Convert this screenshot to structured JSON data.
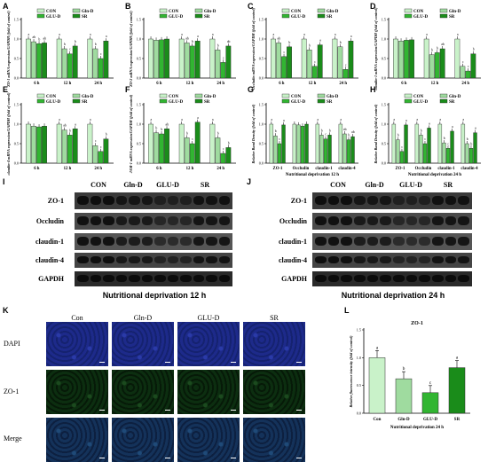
{
  "panel_labels": [
    "A",
    "B",
    "C",
    "D",
    "E",
    "F",
    "G",
    "H",
    "I",
    "J",
    "K",
    "L"
  ],
  "colors": {
    "CON": "#c9f2c9",
    "Gln-D": "#9fdb9f",
    "GLU-D": "#31b531",
    "SR": "#1a8c1a",
    "outline": "#2a2a2a",
    "dapi": "#1c2c8c",
    "zo1": "#0f3a12"
  },
  "legend": [
    "CON",
    "Gln-D",
    "GLU-D",
    "SR"
  ],
  "chart_data": [
    {
      "panel": "A",
      "type": "bar",
      "ylabel": "ZO-1 mRNA expression/GAPDH (fold of control)",
      "categories": [
        "6 h",
        "12 h",
        "24 h"
      ],
      "ylim": [
        0,
        1.5
      ],
      "series": [
        {
          "name": "CON",
          "values": [
            1.0,
            1.0,
            1.0
          ]
        },
        {
          "name": "Gln-D",
          "values": [
            0.93,
            0.75,
            0.75
          ]
        },
        {
          "name": "GLU-D",
          "values": [
            0.88,
            0.62,
            0.5
          ]
        },
        {
          "name": "SR",
          "values": [
            0.9,
            0.82,
            0.95
          ]
        }
      ],
      "annotations": [
        [
          "a",
          "ab",
          "b",
          "ab"
        ],
        [
          "a",
          "b",
          "c",
          "b"
        ],
        [
          "a",
          "b",
          "c",
          "a"
        ]
      ]
    },
    {
      "panel": "B",
      "type": "bar",
      "ylabel": "ZO-2 mRNA expression/GAPDH (fold of control)",
      "categories": [
        "6 h",
        "12 h",
        "24 h"
      ],
      "ylim": [
        0,
        1.5
      ],
      "series": [
        {
          "name": "CON",
          "values": [
            1.0,
            1.0,
            1.0
          ]
        },
        {
          "name": "Gln-D",
          "values": [
            0.97,
            0.9,
            0.72
          ]
        },
        {
          "name": "GLU-D",
          "values": [
            0.98,
            0.82,
            0.4
          ]
        },
        {
          "name": "SR",
          "values": [
            1.0,
            0.95,
            0.82
          ]
        }
      ],
      "annotations": [
        [
          "",
          "",
          "",
          ""
        ],
        [
          "a",
          "ab",
          "b",
          "a"
        ],
        [
          "a",
          "b",
          "c",
          "ab"
        ]
      ]
    },
    {
      "panel": "C",
      "type": "bar",
      "ylabel": "Occludin mRNA expression/GAPDH (fold of control)",
      "categories": [
        "6 h",
        "12 h",
        "24 h"
      ],
      "ylim": [
        0,
        1.5
      ],
      "series": [
        {
          "name": "CON",
          "values": [
            1.0,
            1.0,
            1.0
          ]
        },
        {
          "name": "Gln-D",
          "values": [
            0.9,
            0.72,
            0.8
          ]
        },
        {
          "name": "GLU-D",
          "values": [
            0.55,
            0.3,
            0.22
          ]
        },
        {
          "name": "SR",
          "values": [
            0.8,
            0.85,
            0.95
          ]
        }
      ],
      "annotations": [
        [
          "a",
          "ab",
          "c",
          "b"
        ],
        [
          "a",
          "b",
          "c",
          "a"
        ],
        [
          "a",
          "b",
          "c",
          "a"
        ]
      ]
    },
    {
      "panel": "D",
      "type": "bar",
      "ylabel": "claudin-1 mRNA expression/GAPDH (fold of control)",
      "categories": [
        "6 h",
        "12 h",
        "24 h"
      ],
      "ylim": [
        0,
        1.5
      ],
      "series": [
        {
          "name": "CON",
          "values": [
            1.0,
            1.0,
            1.0
          ]
        },
        {
          "name": "Gln-D",
          "values": [
            0.95,
            0.6,
            0.3
          ]
        },
        {
          "name": "GLU-D",
          "values": [
            0.97,
            0.65,
            0.18
          ]
        },
        {
          "name": "SR",
          "values": [
            0.98,
            0.75,
            0.62
          ]
        }
      ],
      "annotations": [
        [
          "",
          "",
          "",
          ""
        ],
        [
          "a",
          "b",
          "b",
          "ab"
        ],
        [
          "a",
          "c",
          "c",
          "b"
        ]
      ]
    },
    {
      "panel": "E",
      "type": "bar",
      "ylabel": "claudin-4 mRNA expression/GAPDH (fold of control)",
      "categories": [
        "6 h",
        "12 h",
        "24 h"
      ],
      "ylim": [
        0,
        1.5
      ],
      "series": [
        {
          "name": "CON",
          "values": [
            1.0,
            1.0,
            1.0
          ]
        },
        {
          "name": "Gln-D",
          "values": [
            0.95,
            0.85,
            0.45
          ]
        },
        {
          "name": "GLU-D",
          "values": [
            0.93,
            0.72,
            0.3
          ]
        },
        {
          "name": "SR",
          "values": [
            0.95,
            0.88,
            0.62
          ]
        }
      ],
      "annotations": [
        [
          "",
          "",
          "",
          ""
        ],
        [
          "a",
          "ab",
          "b",
          "a"
        ],
        [
          "a",
          "c",
          "c",
          "b"
        ]
      ]
    },
    {
      "panel": "F",
      "type": "bar",
      "ylabel": "JAM-1 mRNA expression/GAPDH (fold of control)",
      "categories": [
        "6 h",
        "12 h",
        "24 h"
      ],
      "ylim": [
        0,
        1.5
      ],
      "series": [
        {
          "name": "CON",
          "values": [
            1.0,
            1.0,
            1.0
          ]
        },
        {
          "name": "Gln-D",
          "values": [
            0.78,
            0.65,
            0.65
          ]
        },
        {
          "name": "GLU-D",
          "values": [
            0.75,
            0.5,
            0.25
          ]
        },
        {
          "name": "SR",
          "values": [
            0.88,
            1.05,
            0.4
          ]
        }
      ],
      "annotations": [
        [
          "a",
          "b",
          "b",
          "ab"
        ],
        [
          "a",
          "b",
          "c",
          "a"
        ],
        [
          "a",
          "b",
          "c",
          "b"
        ]
      ]
    },
    {
      "panel": "G",
      "type": "bar",
      "ylabel": "Relative Band Density (fold of control)",
      "xlabel": "Nutritional deprivation 12 h",
      "categories": [
        "ZO-1",
        "Occludin",
        "claudin-1",
        "claudin-4"
      ],
      "ylim": [
        0,
        1.5
      ],
      "series": [
        {
          "name": "CON",
          "values": [
            1.0,
            1.0,
            1.0,
            1.0
          ]
        },
        {
          "name": "Gln-D",
          "values": [
            0.7,
            0.98,
            0.72,
            0.75
          ]
        },
        {
          "name": "GLU-D",
          "values": [
            0.5,
            0.95,
            0.62,
            0.6
          ]
        },
        {
          "name": "SR",
          "values": [
            0.98,
            1.0,
            0.72,
            0.68
          ]
        }
      ],
      "annotations": [
        [
          "a",
          "b",
          "c",
          "a"
        ],
        [
          "",
          "",
          "",
          ""
        ],
        [
          "a",
          "b",
          "c",
          "b"
        ],
        [
          "a",
          "ab",
          "b",
          "ab"
        ]
      ]
    },
    {
      "panel": "H",
      "type": "bar",
      "ylabel": "Relative Band Density (fold of control)",
      "xlabel": "Nutritional deprivation 24 h",
      "categories": [
        "ZO-1",
        "Occludin",
        "claudin-1",
        "claudin-4"
      ],
      "ylim": [
        0,
        1.5
      ],
      "series": [
        {
          "name": "CON",
          "values": [
            1.0,
            1.0,
            1.0,
            1.0
          ]
        },
        {
          "name": "Gln-D",
          "values": [
            0.6,
            0.72,
            0.52,
            0.5
          ]
        },
        {
          "name": "GLU-D",
          "values": [
            0.3,
            0.5,
            0.38,
            0.38
          ]
        },
        {
          "name": "SR",
          "values": [
            0.98,
            0.9,
            0.82,
            0.78
          ]
        }
      ],
      "annotations": [
        [
          "a",
          "b",
          "c",
          "a"
        ],
        [
          "a",
          "b",
          "c",
          "a"
        ],
        [
          "a",
          "b",
          "c",
          "a"
        ],
        [
          "a",
          "b",
          "b",
          "a"
        ]
      ]
    },
    {
      "panel": "L",
      "type": "bar",
      "title": "ZO-1",
      "ylabel": "Relative fluorescence intensity (fold of control)",
      "xlabel": "Nutritional deprivation 24 h",
      "categories": [
        "Con",
        "Gln-D",
        "GLU-D",
        "SR"
      ],
      "ylim": [
        0,
        1.5
      ],
      "values": [
        1.0,
        0.62,
        0.37,
        0.82
      ],
      "annotations": [
        "a",
        "b",
        "c",
        "a"
      ]
    }
  ],
  "western": [
    {
      "panel": "I",
      "groups": [
        "CON",
        "Gln-D",
        "GLU-D",
        "SR"
      ],
      "rows": [
        "ZO-1",
        "Occludin",
        "claudin-1",
        "claudin-4",
        "GAPDH"
      ],
      "caption": "Nutritional deprivation 12 h"
    },
    {
      "panel": "J",
      "groups": [
        "CON",
        "Gln-D",
        "GLU-D",
        "SR"
      ],
      "rows": [
        "ZO-1",
        "Occludin",
        "claudin-1",
        "claudin-4",
        "GAPDH"
      ],
      "caption": "Nutritional deprivation 24 h"
    }
  ],
  "fluorescence": {
    "columns": [
      "Con",
      "Gln-D",
      "GLU-D",
      "SR"
    ],
    "rows": [
      "DAPI",
      "ZO-1",
      "Merge"
    ]
  }
}
